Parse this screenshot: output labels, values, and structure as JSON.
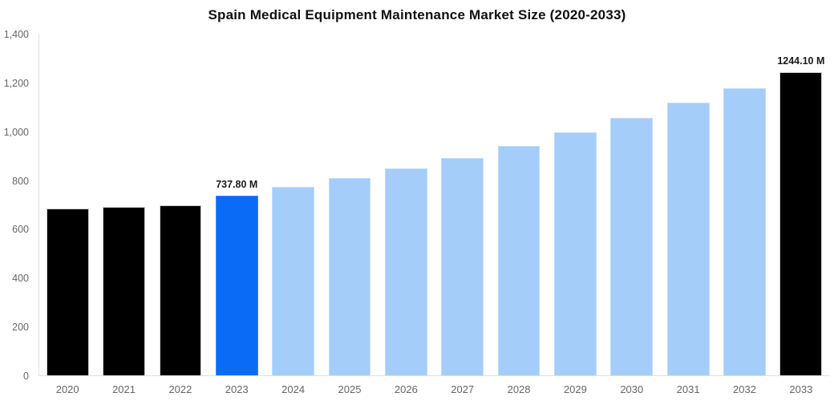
{
  "chart_data": {
    "type": "bar",
    "title": "Spain Medical Equipment Maintenance Market Size (2020-2033)",
    "xlabel": "",
    "ylabel": "",
    "unit": "M",
    "categories": [
      "2020",
      "2021",
      "2022",
      "2023",
      "2024",
      "2025",
      "2026",
      "2027",
      "2028",
      "2029",
      "2030",
      "2031",
      "2032",
      "2033"
    ],
    "values": [
      684,
      692,
      700,
      737.8,
      773,
      810,
      851,
      893,
      941,
      999,
      1059,
      1120,
      1179,
      1244.1
    ],
    "bar_color_keys": [
      "black",
      "black",
      "black",
      "highlight",
      "light",
      "light",
      "light",
      "light",
      "light",
      "light",
      "light",
      "light",
      "light",
      "black"
    ],
    "data_labels": {
      "2023": "737.80 M",
      "2033": "1244.10 M"
    },
    "ylim": [
      0,
      1400
    ],
    "yticks": [
      {
        "value": 0,
        "label": "0"
      },
      {
        "value": 200,
        "label": "200"
      },
      {
        "value": 400,
        "label": "400"
      },
      {
        "value": 600,
        "label": "600"
      },
      {
        "value": 800,
        "label": "800"
      },
      {
        "value": 1000,
        "label": "1,000"
      },
      {
        "value": 1200,
        "label": "1,200"
      },
      {
        "value": 1400,
        "label": "1,400"
      }
    ],
    "grid": false,
    "legend": null,
    "background": "#ffffff"
  },
  "colors": {
    "black_fill": "#000000",
    "black_border": "#cccccc",
    "highlight_fill": "#0a6cf5",
    "highlight_border": "#3f87f8",
    "light_fill": "#a5cdfa",
    "light_border": "#c2dcfc",
    "axis_line": "#e0e0e0",
    "tick_text": "#666666",
    "title_text": "#111111",
    "value_label_text": "#1a1a1a"
  }
}
